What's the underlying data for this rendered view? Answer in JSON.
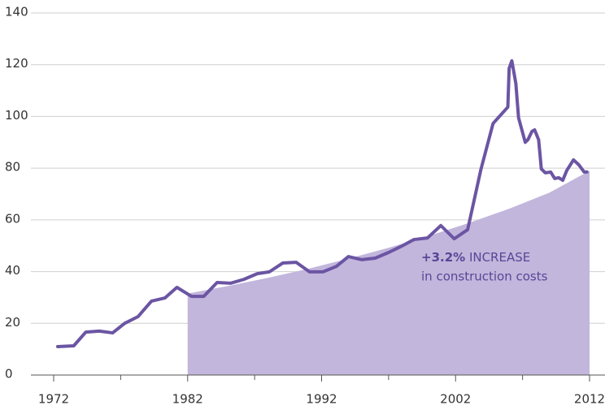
{
  "chart_data": {
    "type": "line",
    "x": [
      1972.3,
      1973.5,
      1974.4,
      1975.4,
      1976.4,
      1977.3,
      1978.3,
      1979.3,
      1980.3,
      1981.2,
      1982.3,
      1983.2,
      1984.2,
      1985.2,
      1986.2,
      1987.2,
      1988.1,
      1989.1,
      1990.1,
      1991.1,
      1992.1,
      1993.1,
      1994.0,
      1995.0,
      1996.0,
      1997.0,
      1998.0,
      1998.9,
      1999.9,
      2000.9,
      2001.9,
      2002.9,
      2003.9,
      2004.8,
      2005.9,
      2006.0,
      2006.2,
      2006.5,
      2006.7,
      2007.2,
      2007.4,
      2007.7,
      2007.9,
      2008.2,
      2008.4,
      2008.7,
      2009.1,
      2009.4,
      2009.7,
      2010.0,
      2010.3,
      2010.8,
      2011.2,
      2011.6,
      2011.8
    ],
    "series": [
      {
        "color": "#6b55a3",
        "values": [
          11,
          11.3,
          16.6,
          17,
          16.3,
          20,
          22.6,
          28.6,
          29.8,
          33.9,
          30.4,
          30.4,
          35.8,
          35.5,
          37,
          39.2,
          39.9,
          43.3,
          43.6,
          39.9,
          39.9,
          42,
          45.8,
          44.6,
          45.2,
          47.4,
          49.9,
          52.4,
          53,
          57.8,
          52.7,
          56.2,
          79.7,
          97.3,
          103.6,
          118.6,
          121.5,
          112.7,
          99.5,
          90,
          91,
          94.2,
          94.8,
          91,
          79.7,
          78.2,
          78.5,
          76,
          76.3,
          75.3,
          79.1,
          83.2,
          81.3,
          78.5,
          78.5
        ]
      }
    ],
    "trend_area": {
      "color": "#c2b6dc",
      "x": [
        1982,
        1985,
        1988,
        1991,
        1994,
        1997,
        2000,
        2003,
        2006,
        2009,
        2012
      ],
      "values": [
        31.5,
        34.4,
        37.6,
        41.1,
        45.0,
        49.2,
        53.8,
        58.8,
        64.3,
        70.5,
        79
      ]
    },
    "annotation": {
      "highlight": "+3.2%",
      "text": " INCREASE",
      "line2": "in construction costs"
    },
    "xlim": [
      1972,
      2012
    ],
    "xticks": [
      1972,
      1982,
      1992,
      2002,
      2012
    ],
    "minor_xticks": [
      1977,
      1987,
      1997,
      2007
    ],
    "ylim": [
      0,
      140
    ],
    "yticks": [
      0,
      20,
      40,
      60,
      80,
      100,
      120,
      140
    ],
    "grid": true
  }
}
